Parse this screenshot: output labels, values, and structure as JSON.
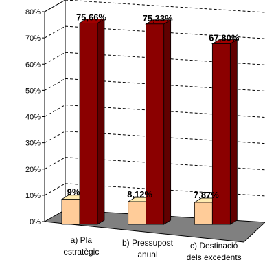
{
  "chart_data": {
    "type": "bar",
    "three_d": true,
    "categories": [
      [
        "a) Pla",
        "estratègic"
      ],
      [
        "b) Pressupost",
        "anual"
      ],
      [
        "c) Destinació",
        "dels excedents"
      ]
    ],
    "series": [
      {
        "values": [
          9,
          8.12,
          7.87
        ],
        "labels": [
          "9%",
          "8,12%",
          "7,87%"
        ],
        "color": "#FFCC99"
      },
      {
        "values": [
          75.66,
          75.33,
          67.8
        ],
        "labels": [
          "75,66%",
          "75,33%",
          "67,80%"
        ],
        "color": "#8B0000"
      }
    ],
    "y_ticks": [
      "0%",
      "10%",
      "20%",
      "30%",
      "40%",
      "50%",
      "60%",
      "70%",
      "80%"
    ],
    "ylim": [
      0,
      80
    ],
    "grid": "dashed",
    "floor_color": "#808080",
    "legend": "none"
  }
}
